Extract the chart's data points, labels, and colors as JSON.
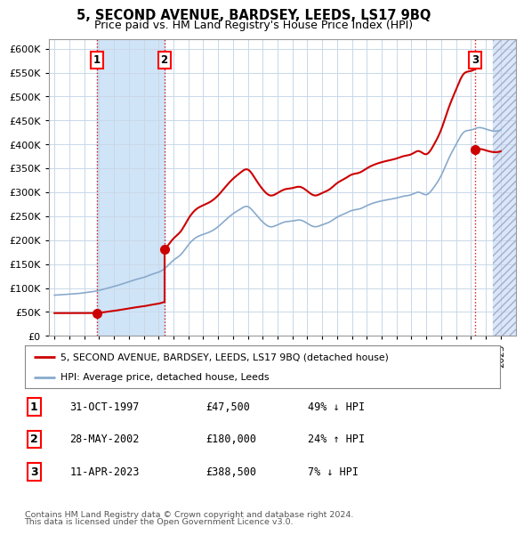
{
  "title": "5, SECOND AVENUE, BARDSEY, LEEDS, LS17 9BQ",
  "subtitle": "Price paid vs. HM Land Registry's House Price Index (HPI)",
  "legend_line1": "5, SECOND AVENUE, BARDSEY, LEEDS, LS17 9BQ (detached house)",
  "legend_line2": "HPI: Average price, detached house, Leeds",
  "footer1": "Contains HM Land Registry data © Crown copyright and database right 2024.",
  "footer2": "This data is licensed under the Open Government Licence v3.0.",
  "transactions": [
    {
      "num": 1,
      "date": "31-OCT-1997",
      "price": 47500,
      "x": 1997.83,
      "pct": "49%",
      "dir": "↓"
    },
    {
      "num": 2,
      "date": "28-MAY-2002",
      "price": 180000,
      "x": 2002.38,
      "pct": "24%",
      "dir": "↑"
    },
    {
      "num": 3,
      "date": "11-APR-2023",
      "price": 388500,
      "x": 2023.28,
      "pct": "7%",
      "dir": "↓"
    }
  ],
  "ylim": [
    0,
    620000
  ],
  "xlim_start": 1994.6,
  "xlim_end": 2026.0,
  "shade1_start": 1997.83,
  "shade1_end": 2002.38,
  "hatch_start": 2024.5,
  "red_color": "#cc0000",
  "blue_color": "#88aacc",
  "shade_color": "#d0e4f7",
  "hatch_color": "#d8e8f8",
  "plot_bg": "#ffffff",
  "grid_color": "#c8d8e8"
}
